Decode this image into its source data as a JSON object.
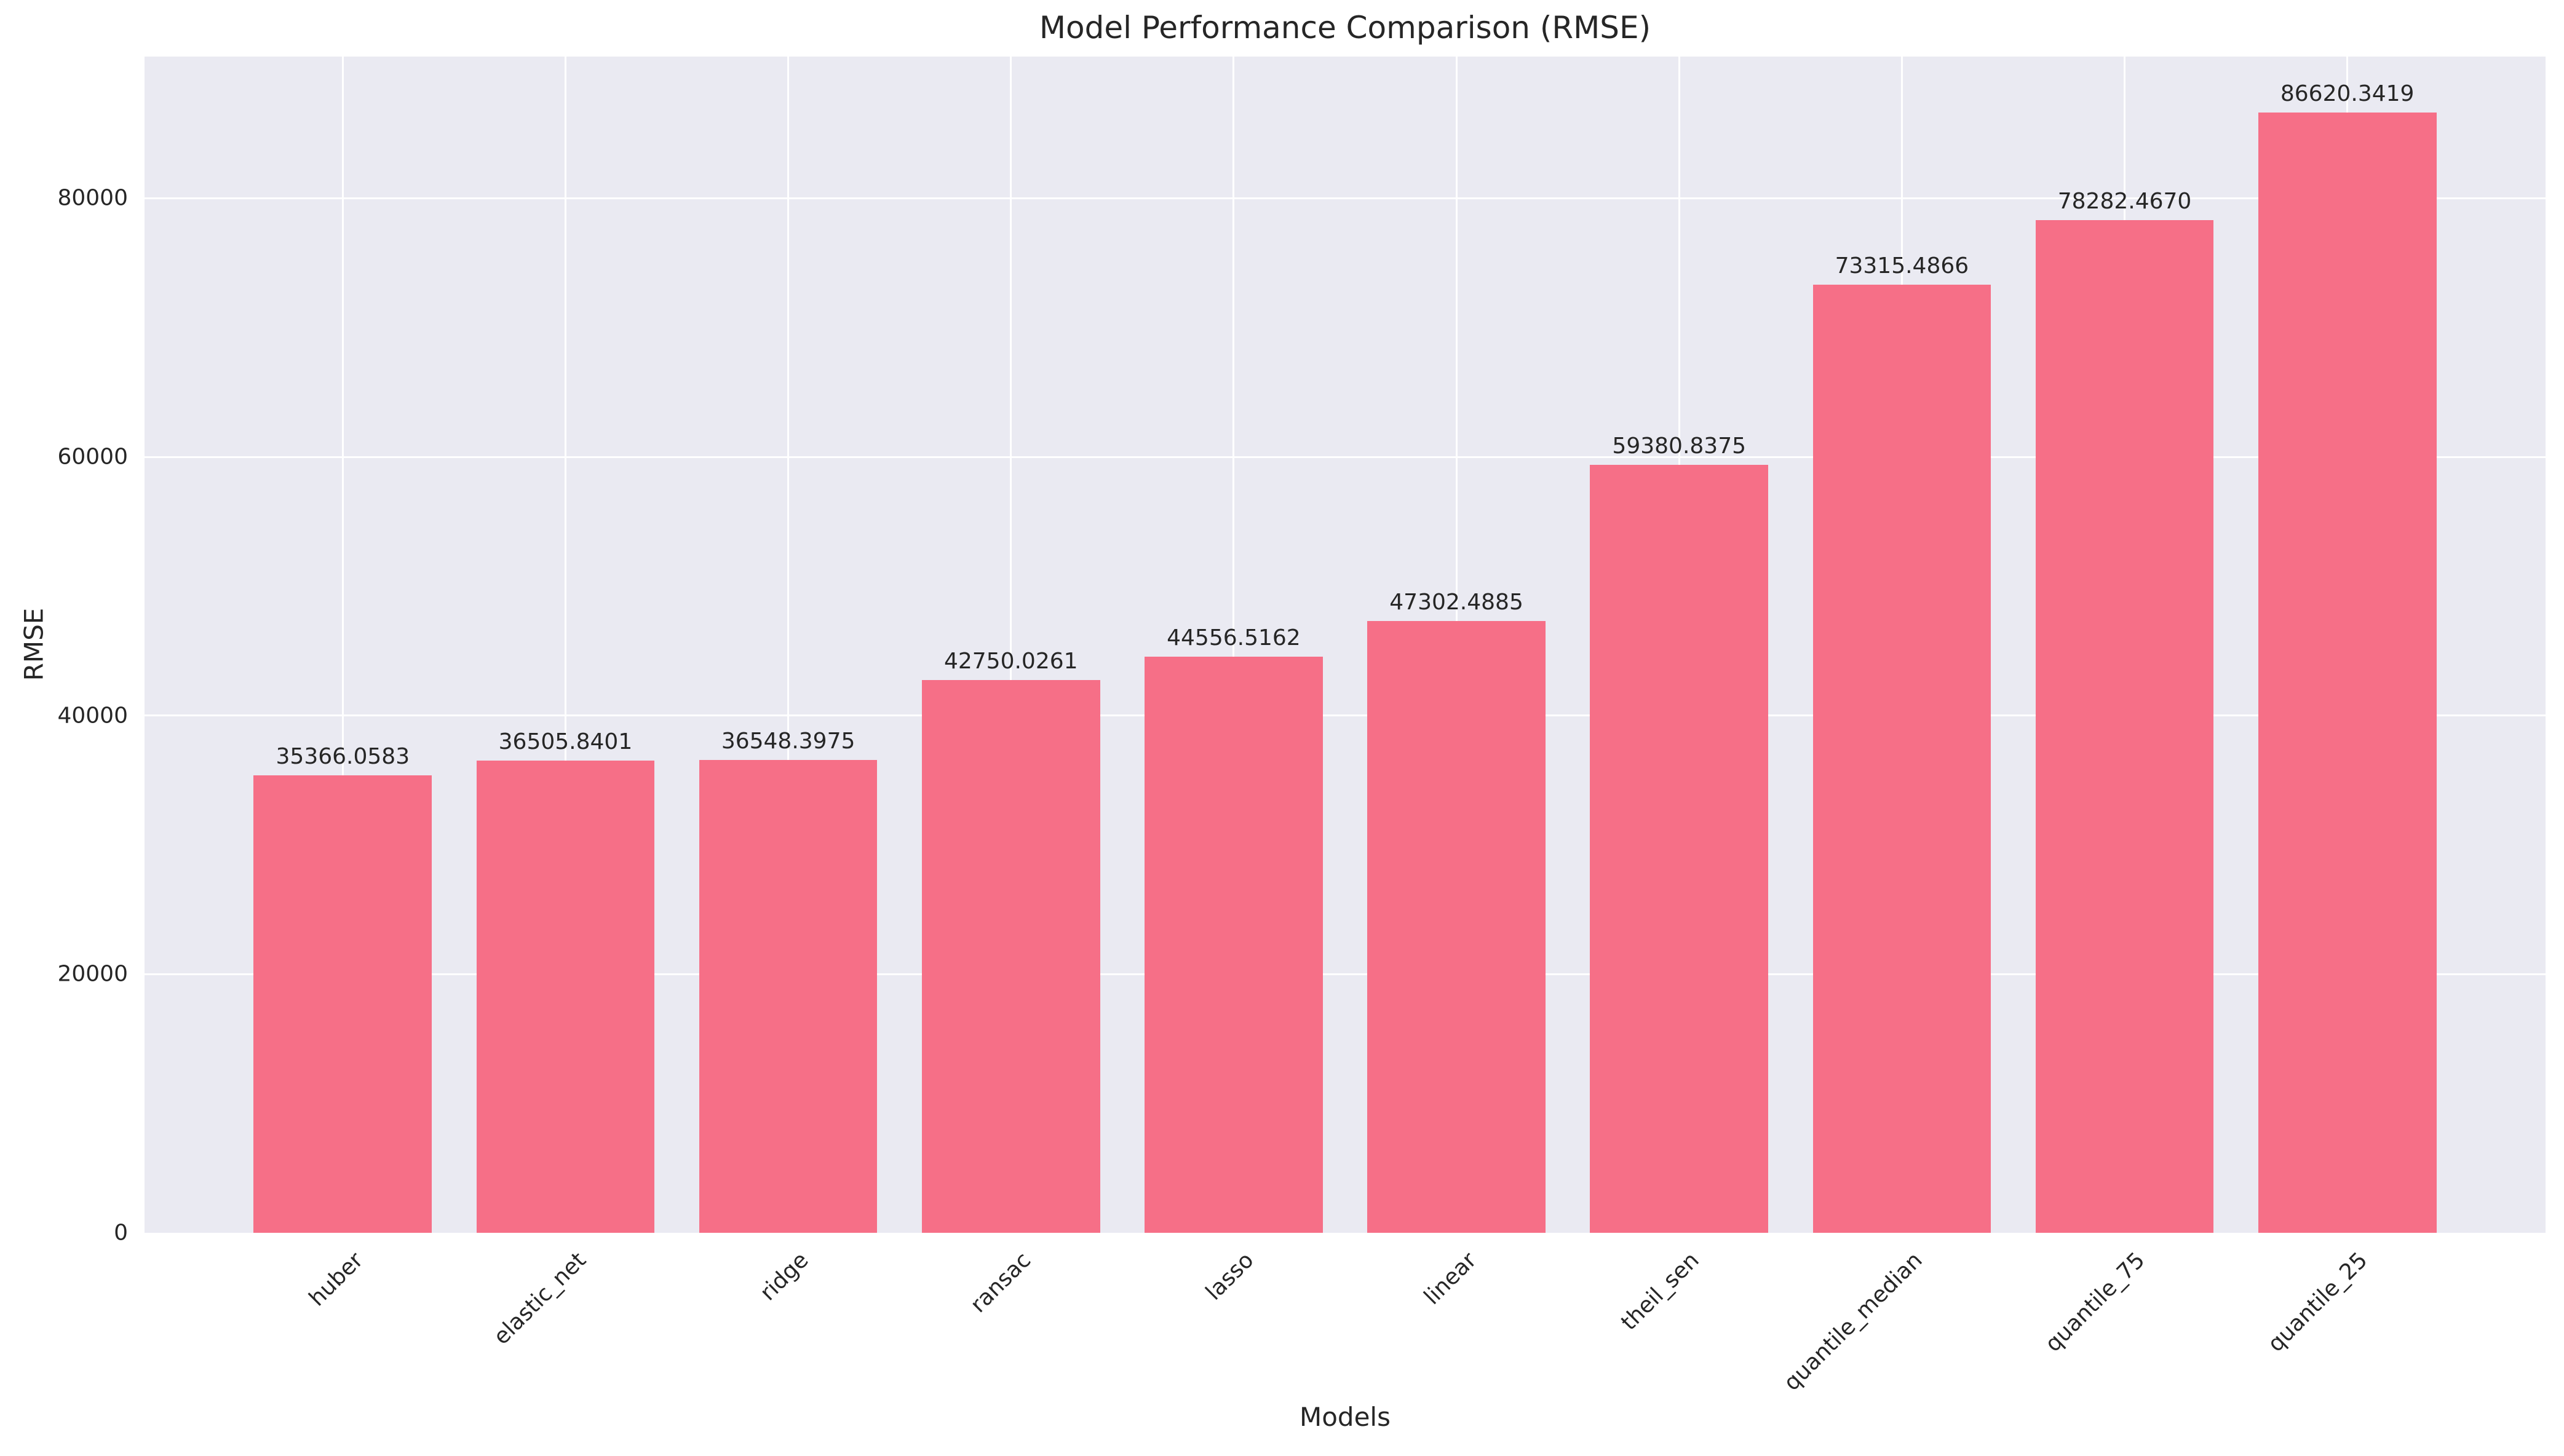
{
  "chart_data": {
    "type": "bar",
    "title": "Model Performance Comparison (RMSE)",
    "xlabel": "Models",
    "ylabel": "RMSE",
    "categories": [
      "huber",
      "elastic_net",
      "ridge",
      "ransac",
      "lasso",
      "linear",
      "theil_sen",
      "quantile_median",
      "quantile_75",
      "quantile_25"
    ],
    "values": [
      35366.0583,
      36505.8401,
      36548.3975,
      42750.0261,
      44556.5162,
      47302.4885,
      59380.8375,
      73315.4866,
      78282.467,
      86620.3419
    ],
    "bar_value_labels": [
      "35366.0583",
      "36505.8401",
      "36548.3975",
      "42750.0261",
      "44556.5162",
      "47302.4885",
      "59380.8375",
      "73315.4866",
      "78282.4670",
      "86620.3419"
    ],
    "yticks": [
      0,
      20000,
      40000,
      60000,
      80000
    ],
    "ytick_labels": [
      "0",
      "20000",
      "40000",
      "60000",
      "80000"
    ],
    "ylim": [
      0,
      90951
    ],
    "grid": true,
    "legend_position": "none",
    "x_tick_rotation_deg": 45,
    "colors": {
      "bar": "#F66F87",
      "plot_background": "#EAEAF2",
      "gridline": "#FFFFFF",
      "text": "#262626",
      "figure_background": "#FFFFFF"
    }
  }
}
